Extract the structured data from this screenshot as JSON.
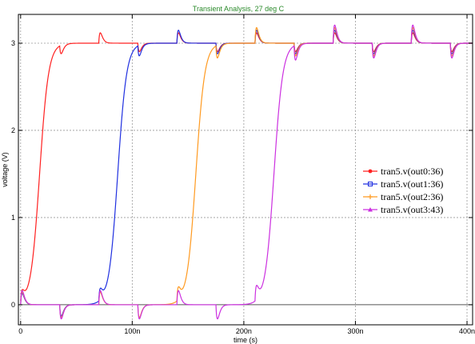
{
  "chart_data": {
    "type": "line",
    "title": "Transient Analysis, 27 deg C",
    "xlabel": "time (s)",
    "ylabel": "voltage (V)",
    "xlim": [
      -2,
      405
    ],
    "ylim": [
      -0.23,
      3.33
    ],
    "x_ticks": [
      {
        "value": 0,
        "label": "0"
      },
      {
        "value": 100,
        "label": "100n"
      },
      {
        "value": 200,
        "label": "200n"
      },
      {
        "value": 300,
        "label": "300n"
      },
      {
        "value": 400,
        "label": "400n"
      }
    ],
    "y_ticks": [
      {
        "value": 0,
        "label": "0"
      },
      {
        "value": 1,
        "label": "1"
      },
      {
        "value": 2,
        "label": "2"
      },
      {
        "value": 3,
        "label": "3"
      }
    ],
    "x_unit": "ns",
    "grid": true,
    "legend_position": "right-middle",
    "clock_edges_ns": [
      0,
      35,
      70,
      105,
      140,
      175,
      210,
      245,
      280,
      315,
      350,
      385
    ],
    "series": [
      {
        "name": "tran5.v(out0:36)",
        "color": "#ff2020",
        "marker": "dot",
        "rise_center_ns": 17,
        "rise_width_ns": 4
      },
      {
        "name": "tran5.v(out1:36)",
        "color": "#2030e0",
        "marker": "square",
        "rise_center_ns": 87,
        "rise_width_ns": 4
      },
      {
        "name": "tran5.v(out2:36)",
        "color": "#ff9a20",
        "marker": "plus",
        "rise_center_ns": 157,
        "rise_width_ns": 4
      },
      {
        "name": "tran5.v(out3:43)",
        "color": "#cc30e0",
        "marker": "triangle",
        "rise_center_ns": 227,
        "rise_width_ns": 4
      }
    ]
  }
}
